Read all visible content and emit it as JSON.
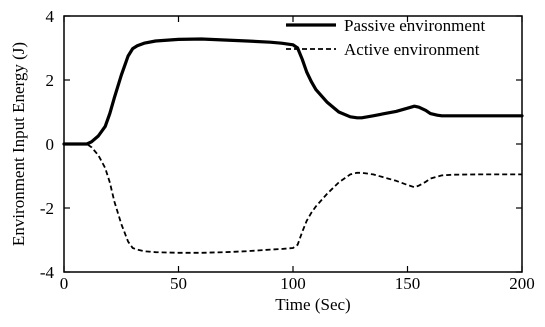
{
  "chart_data": {
    "type": "line",
    "title": "",
    "xlabel": "Time (Sec)",
    "ylabel": "Environment Input Energy (J)",
    "xlim": [
      0,
      200
    ],
    "ylim": [
      -4,
      4
    ],
    "xticks": [
      0,
      50,
      100,
      150,
      200
    ],
    "yticks": [
      -4,
      -2,
      0,
      2,
      4
    ],
    "grid": false,
    "legend": "top-right",
    "series": [
      {
        "name": "Passive environment",
        "line_style": "solid",
        "color": "#000000",
        "x": [
          0,
          5,
          10,
          12,
          15,
          18,
          20,
          22,
          25,
          28,
          30,
          32,
          35,
          40,
          50,
          60,
          70,
          80,
          90,
          95,
          100,
          102,
          104,
          106,
          108,
          110,
          115,
          120,
          125,
          128,
          130,
          135,
          140,
          145,
          150,
          153,
          155,
          158,
          160,
          163,
          165,
          170,
          180,
          190,
          200
        ],
        "y": [
          0,
          0,
          0,
          0.07,
          0.25,
          0.55,
          0.95,
          1.45,
          2.15,
          2.75,
          2.98,
          3.07,
          3.15,
          3.22,
          3.27,
          3.28,
          3.25,
          3.22,
          3.18,
          3.15,
          3.1,
          3.0,
          2.65,
          2.25,
          1.95,
          1.7,
          1.3,
          1.0,
          0.85,
          0.82,
          0.82,
          0.88,
          0.95,
          1.02,
          1.12,
          1.18,
          1.15,
          1.05,
          0.95,
          0.9,
          0.88,
          0.88,
          0.88,
          0.88,
          0.88
        ]
      },
      {
        "name": "Active environment",
        "line_style": "dashed",
        "color": "#000000",
        "x": [
          0,
          5,
          10,
          12,
          15,
          18,
          20,
          22,
          25,
          28,
          30,
          32,
          35,
          40,
          50,
          60,
          70,
          80,
          90,
          95,
          100,
          102,
          104,
          106,
          108,
          110,
          115,
          120,
          125,
          128,
          130,
          135,
          140,
          145,
          150,
          153,
          155,
          158,
          160,
          163,
          165,
          170,
          180,
          190,
          200
        ],
        "y": [
          0,
          0,
          0,
          -0.1,
          -0.35,
          -0.75,
          -1.2,
          -1.8,
          -2.5,
          -3.05,
          -3.25,
          -3.3,
          -3.35,
          -3.38,
          -3.4,
          -3.4,
          -3.38,
          -3.35,
          -3.3,
          -3.28,
          -3.25,
          -3.15,
          -2.75,
          -2.4,
          -2.15,
          -1.95,
          -1.55,
          -1.2,
          -0.95,
          -0.9,
          -0.9,
          -0.95,
          -1.05,
          -1.15,
          -1.28,
          -1.35,
          -1.3,
          -1.18,
          -1.08,
          -1.02,
          -0.98,
          -0.96,
          -0.95,
          -0.95,
          -0.95
        ]
      }
    ]
  }
}
